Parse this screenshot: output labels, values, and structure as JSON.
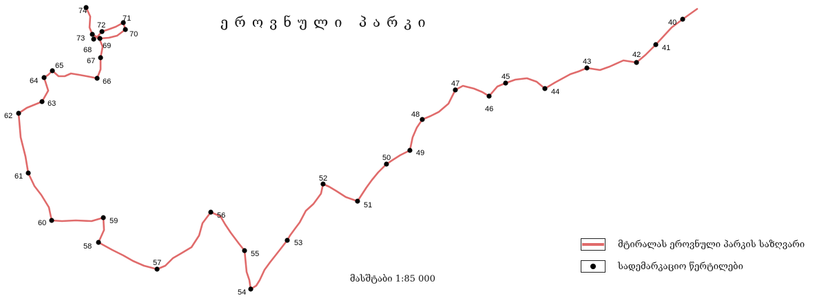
{
  "map": {
    "title": "ეროვნული პარკი",
    "scale_text": "მასშტაბი 1:85 000",
    "trail_color": "#e06b6b",
    "marker_color": "#000000",
    "points": [
      {
        "id": "40"
      },
      {
        "id": "41"
      },
      {
        "id": "42"
      },
      {
        "id": "43"
      },
      {
        "id": "44"
      },
      {
        "id": "45"
      },
      {
        "id": "46"
      },
      {
        "id": "47"
      },
      {
        "id": "48"
      },
      {
        "id": "49"
      },
      {
        "id": "50"
      },
      {
        "id": "51"
      },
      {
        "id": "52"
      },
      {
        "id": "53"
      },
      {
        "id": "54"
      },
      {
        "id": "55"
      },
      {
        "id": "56"
      },
      {
        "id": "57"
      },
      {
        "id": "58"
      },
      {
        "id": "59"
      },
      {
        "id": "60"
      },
      {
        "id": "61"
      },
      {
        "id": "62"
      },
      {
        "id": "63"
      },
      {
        "id": "64"
      },
      {
        "id": "65"
      },
      {
        "id": "66"
      },
      {
        "id": "67"
      },
      {
        "id": "68"
      },
      {
        "id": "69"
      },
      {
        "id": "70"
      },
      {
        "id": "71"
      },
      {
        "id": "72"
      },
      {
        "id": "73"
      },
      {
        "id": "74"
      }
    ]
  },
  "legend": {
    "items": [
      {
        "label": "მტირალას ეროვნული პარკის საზღვარი",
        "icon": "red-line-icon"
      },
      {
        "label": "სადემარკაციო წერტილები",
        "icon": "black-dot-icon"
      }
    ]
  }
}
